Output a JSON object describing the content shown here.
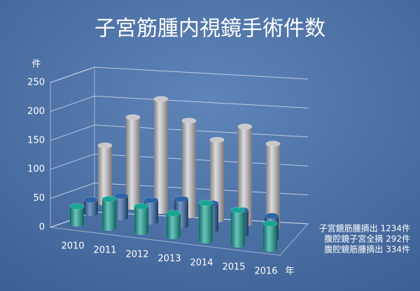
{
  "chart_data": {
    "type": "cylinder3d",
    "title": "子宮筋腫内視鏡手術件数",
    "y_label": "件",
    "x_label": "年",
    "categories": [
      "2010",
      "2011",
      "2012",
      "2013",
      "2014",
      "2015",
      "2016"
    ],
    "series": [
      {
        "name": "腹腔鏡筋腫摘出 334件",
        "color": "#17a596",
        "values": [
          30,
          50,
          45,
          40,
          65,
          60,
          44
        ]
      },
      {
        "name": "腹腔鏡子宮全摘 292件",
        "color": "#2f63a6",
        "values": [
          25,
          40,
          40,
          50,
          50,
          45,
          42
        ]
      },
      {
        "name": "子宮鏡筋腫摘出 1234件",
        "color": "#c9c9cc",
        "values": [
          115,
          180,
          225,
          190,
          160,
          195,
          169
        ]
      }
    ],
    "ylim": [
      0,
      250
    ],
    "yticks": [
      0,
      50,
      100,
      150,
      200,
      250
    ],
    "grid": true
  }
}
